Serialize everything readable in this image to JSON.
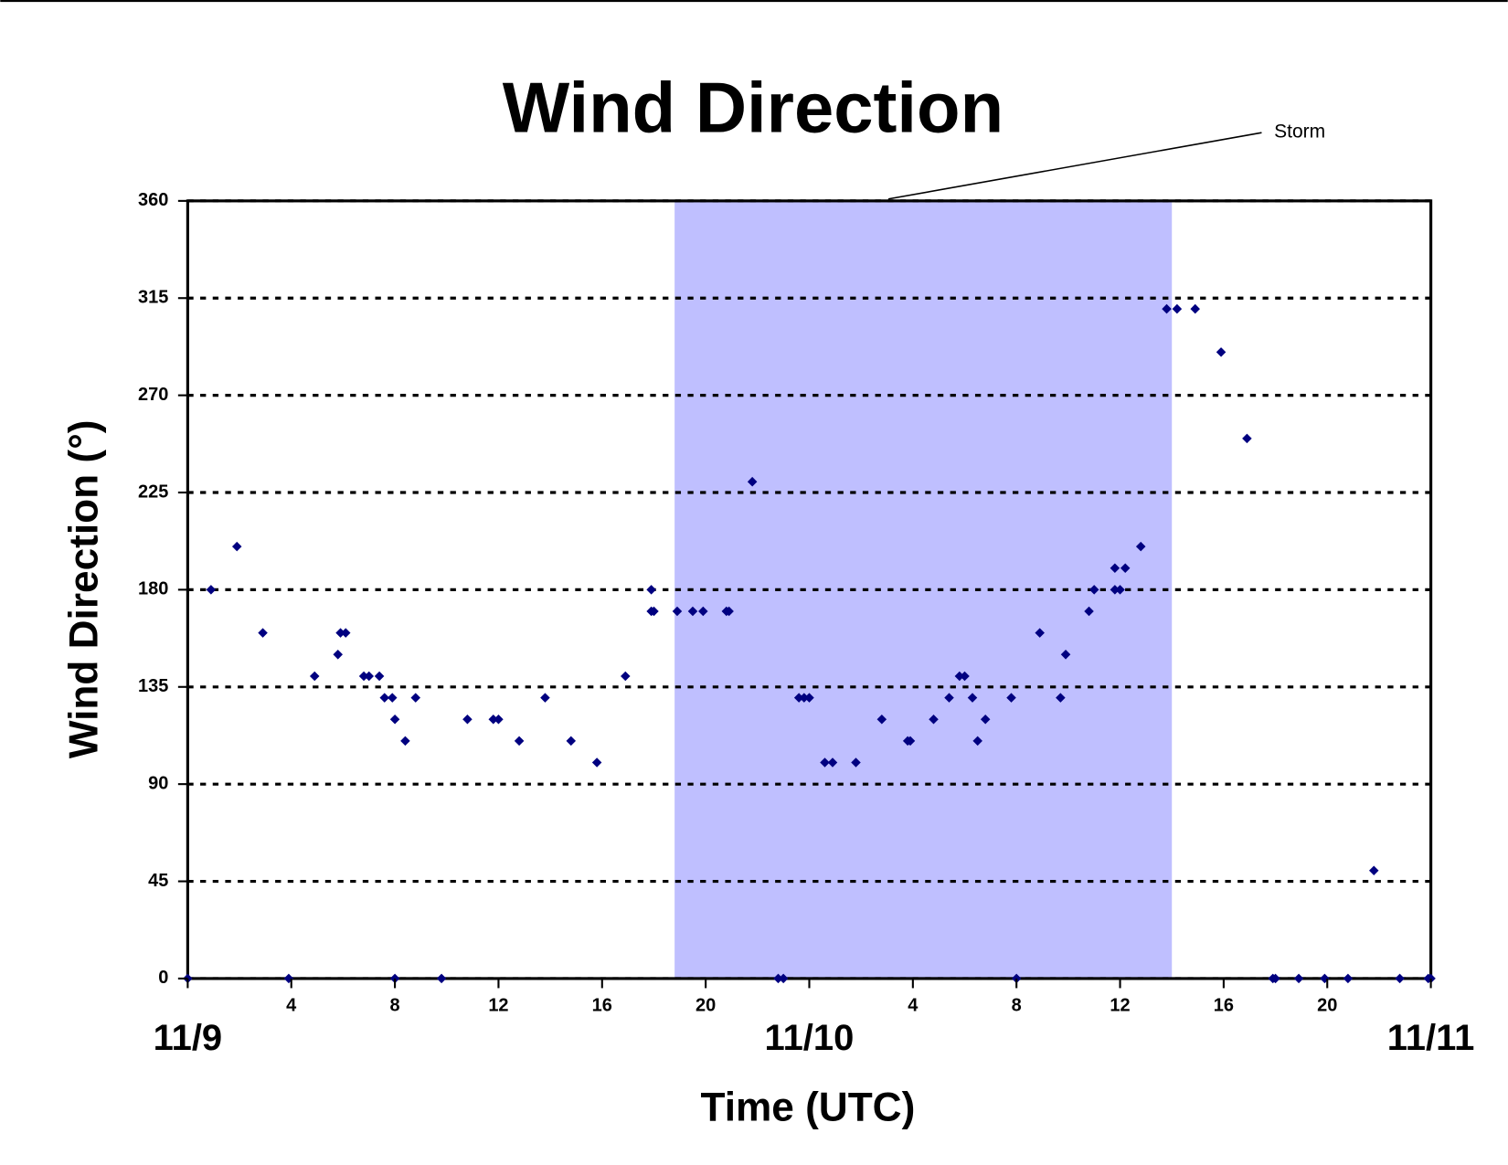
{
  "chart_data": {
    "type": "scatter",
    "title": "Wind Direction",
    "x_label": "Time (UTC)",
    "y_label": "Wind Direction (°)",
    "xlim": [
      0,
      48
    ],
    "ylim": [
      0,
      360
    ],
    "xticks": [
      {
        "value": 0,
        "label": "11/9"
      },
      4,
      8,
      12,
      16,
      20,
      {
        "value": 24,
        "label": "11/10"
      },
      {
        "value": 28,
        "label": "4"
      },
      {
        "value": 32,
        "label": "8"
      },
      {
        "value": 36,
        "label": "12"
      },
      {
        "value": 40,
        "label": "16"
      },
      {
        "value": 44,
        "label": "20"
      },
      {
        "value": 48,
        "label": "11/11"
      }
    ],
    "yticks": [
      0,
      45,
      90,
      135,
      180,
      225,
      270,
      315,
      360
    ],
    "grid": true,
    "color": "#000080",
    "annotations": [
      {
        "text": "Storm",
        "x_start": 18.8,
        "x_end": 38,
        "color": "#bfbfff"
      }
    ],
    "x": [
      0,
      0.9,
      1.9,
      2.9,
      3.9,
      4.9,
      5.8,
      5.9,
      6.1,
      6.8,
      7.0,
      7.4,
      7.6,
      7.9,
      8.0,
      8.0,
      8.4,
      8.8,
      9.8,
      10.8,
      11.8,
      12.0,
      12.8,
      13.8,
      14.8,
      15.8,
      16.9,
      17.9,
      17.9,
      18.0,
      18.9,
      19.5,
      19.9,
      20.8,
      20.9,
      21.8,
      22.8,
      23.0,
      23.6,
      23.8,
      24.0,
      24.6,
      24.9,
      25.8,
      26.8,
      27.8,
      27.9,
      28.8,
      29.4,
      29.8,
      30.0,
      30.3,
      30.5,
      30.8,
      31.8,
      32.0,
      32.9,
      33.7,
      33.9,
      34.8,
      35.0,
      35.8,
      35.8,
      36.0,
      36.2,
      36.8,
      37.8,
      38.2,
      38.9,
      39.9,
      40.9,
      41.9,
      42.0,
      42.9,
      43.9,
      44.8,
      45.8,
      46.8,
      47.9,
      48
    ],
    "values": [
      0,
      180,
      200,
      160,
      0,
      140,
      150,
      160,
      160,
      140,
      140,
      140,
      130,
      130,
      120,
      0,
      110,
      130,
      0,
      120,
      120,
      120,
      110,
      130,
      110,
      100,
      140,
      180,
      170,
      170,
      170,
      170,
      170,
      170,
      170,
      230,
      0,
      0,
      130,
      130,
      130,
      100,
      100,
      100,
      120,
      110,
      110,
      120,
      130,
      140,
      140,
      130,
      110,
      120,
      130,
      0,
      160,
      130,
      150,
      170,
      180,
      190,
      180,
      180,
      190,
      200,
      310,
      310,
      310,
      290,
      250,
      0,
      0,
      0,
      0,
      0,
      50,
      0,
      0,
      0
    ]
  }
}
